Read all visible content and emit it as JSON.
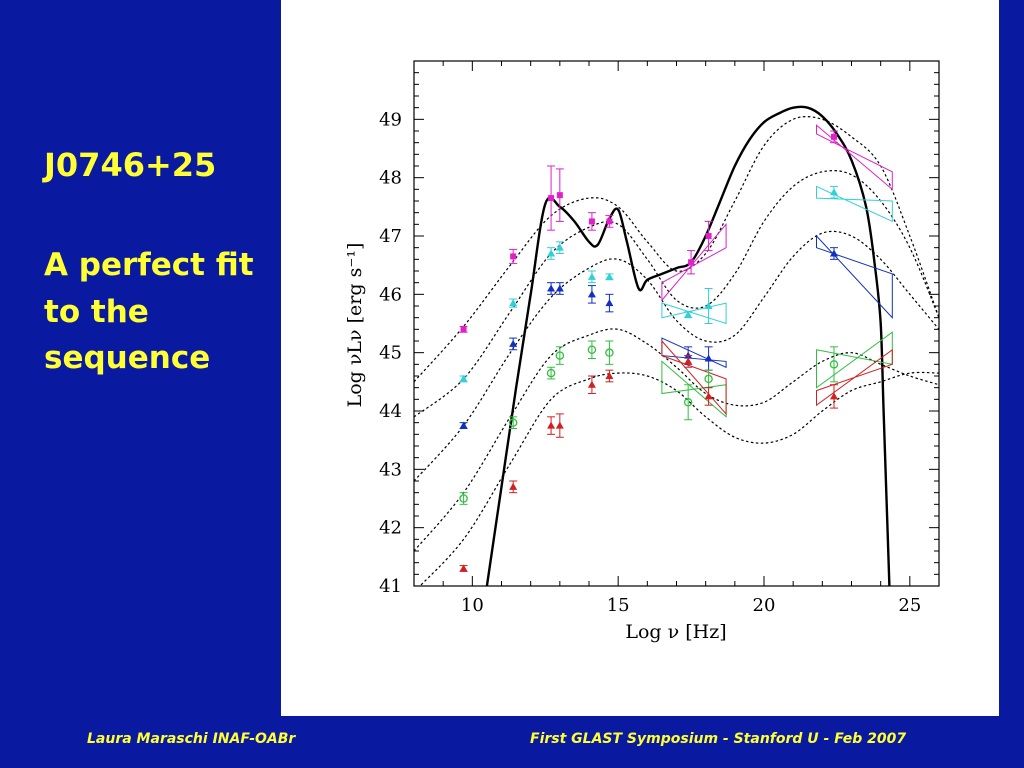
{
  "slide": {
    "title": "J0746+25",
    "subtitle": "A perfect fit to the sequence",
    "footer_left": "Laura Maraschi INAF-OABr",
    "footer_right": "First GLAST Symposium - Stanford U - Feb 2007"
  },
  "chart_data": {
    "type": "line",
    "title": "",
    "xlabel": "Log ν  [Hz]",
    "ylabel": "Log νLν [erg s⁻¹]",
    "xlim": [
      8,
      26
    ],
    "ylim": [
      41,
      50
    ],
    "xticks": [
      10,
      15,
      20,
      25
    ],
    "yticks": [
      41,
      42,
      43,
      44,
      45,
      46,
      47,
      48,
      49
    ],
    "grid": false,
    "legend": "none",
    "colors": {
      "magenta": "#e020c8",
      "cyan": "#30d0d8",
      "blue": "#1030c0",
      "green": "#30c040",
      "red": "#d02020",
      "model": "#000000"
    },
    "series": [
      {
        "style": "dotted",
        "color": "#000000",
        "x": [
          8.0,
          9.7,
          11.3,
          12.7,
          14.0,
          15.0,
          16.0,
          17.0,
          18.0,
          19.0,
          20.0,
          21.0,
          22.0,
          23.0,
          24.0,
          25.0,
          26.0
        ],
        "values": [
          44.5,
          45.45,
          46.5,
          47.35,
          47.65,
          47.5,
          46.9,
          46.4,
          46.7,
          47.6,
          48.55,
          49.0,
          49.0,
          48.7,
          48.2,
          47.0,
          45.6
        ]
      },
      {
        "style": "dotted",
        "color": "#000000",
        "x": [
          8.0,
          9.7,
          11.3,
          12.7,
          14.0,
          15.0,
          16.0,
          17.0,
          18.0,
          19.0,
          20.0,
          21.0,
          22.0,
          23.0,
          24.0,
          25.0,
          26.0
        ],
        "values": [
          43.9,
          44.55,
          45.7,
          46.7,
          47.15,
          47.2,
          46.6,
          45.9,
          45.8,
          46.35,
          47.25,
          47.85,
          48.1,
          48.05,
          47.6,
          46.8,
          45.6
        ]
      },
      {
        "style": "dotted",
        "color": "#000000",
        "x": [
          8.0,
          9.7,
          11.3,
          12.7,
          14.0,
          15.0,
          16.0,
          17.0,
          18.0,
          19.0,
          20.0,
          21.0,
          22.0,
          23.0,
          24.0,
          25.0,
          26.0
        ],
        "values": [
          42.8,
          43.75,
          45.0,
          45.95,
          46.45,
          46.6,
          46.25,
          45.55,
          45.2,
          45.3,
          45.95,
          46.65,
          47.05,
          47.0,
          46.6,
          46.0,
          45.4
        ]
      },
      {
        "style": "dotted",
        "color": "#000000",
        "x": [
          8.0,
          9.7,
          11.3,
          12.7,
          14.0,
          15.0,
          16.0,
          17.0,
          18.0,
          19.0,
          20.0,
          21.0,
          22.0,
          23.0,
          24.0,
          25.0,
          26.0
        ],
        "values": [
          41.6,
          42.6,
          43.9,
          44.95,
          45.3,
          45.4,
          45.15,
          44.75,
          44.3,
          44.1,
          44.15,
          44.5,
          44.85,
          45.0,
          44.8,
          44.6,
          44.45
        ]
      },
      {
        "style": "dotted",
        "color": "#000000",
        "x": [
          8.0,
          9.7,
          11.3,
          12.7,
          14.0,
          15.0,
          16.0,
          17.0,
          18.0,
          19.0,
          20.0,
          21.0,
          22.0,
          23.0,
          24.0,
          25.0,
          26.0
        ],
        "values": [
          40.9,
          41.8,
          43.1,
          44.2,
          44.55,
          44.65,
          44.6,
          44.35,
          43.9,
          43.55,
          43.45,
          43.6,
          44.0,
          44.35,
          44.5,
          44.65,
          44.65
        ]
      },
      {
        "name": "J0746+25",
        "style": "solid",
        "color": "#000000",
        "x": [
          10.5,
          11.0,
          11.5,
          12.0,
          12.5,
          13.0,
          13.5,
          14.0,
          14.3,
          14.7,
          15.0,
          15.3,
          15.7,
          16.0,
          16.5,
          17.0,
          17.5,
          18.0,
          18.5,
          19.0,
          19.5,
          20.0,
          20.5,
          21.0,
          21.5,
          22.0,
          22.5,
          23.0,
          23.5,
          23.8,
          24.0,
          24.1,
          24.2,
          24.3
        ],
        "values": [
          41.0,
          42.7,
          44.4,
          46.0,
          47.55,
          47.5,
          47.25,
          46.9,
          46.85,
          47.3,
          47.45,
          46.9,
          46.1,
          46.25,
          46.35,
          46.45,
          46.55,
          47.0,
          47.6,
          48.2,
          48.65,
          48.95,
          49.1,
          49.2,
          49.2,
          49.05,
          48.75,
          48.3,
          47.5,
          46.5,
          45.5,
          44.0,
          42.5,
          41.0
        ]
      }
    ],
    "points": [
      {
        "color": "#e020c8",
        "marker": "square",
        "x": [
          9.7,
          11.4,
          12.7,
          13.0,
          14.1,
          14.7,
          17.5,
          18.1,
          22.4
        ],
        "y": [
          45.4,
          46.65,
          47.65,
          47.7,
          47.25,
          47.25,
          46.55,
          47.0,
          48.7
        ],
        "err": [
          0.05,
          0.12,
          0.55,
          0.45,
          0.15,
          0.1,
          0.2,
          0.25,
          0.1
        ]
      },
      {
        "color": "#30d0d8",
        "marker": "triangle",
        "x": [
          9.7,
          11.4,
          12.7,
          13.0,
          14.1,
          14.7,
          17.4,
          18.1,
          22.4
        ],
        "y": [
          44.55,
          45.85,
          46.7,
          46.8,
          46.3,
          46.3,
          45.65,
          45.8,
          47.75
        ],
        "err": [
          0.05,
          0.07,
          0.1,
          0.1,
          0.1,
          0.05,
          0.05,
          0.3,
          0.1
        ]
      },
      {
        "color": "#1030c0",
        "marker": "triangle",
        "x": [
          9.7,
          11.4,
          12.7,
          13.0,
          14.1,
          14.7,
          17.4,
          18.1,
          22.4
        ],
        "y": [
          43.75,
          45.15,
          46.1,
          46.1,
          46.0,
          45.85,
          44.95,
          44.9,
          46.7
        ],
        "err": [
          0.05,
          0.1,
          0.1,
          0.1,
          0.15,
          0.15,
          0.15,
          0.2,
          0.1
        ]
      },
      {
        "color": "#30c040",
        "marker": "circle",
        "x": [
          9.7,
          11.4,
          12.7,
          13.0,
          14.1,
          14.7,
          17.4,
          18.1,
          22.4
        ],
        "y": [
          42.5,
          43.8,
          44.65,
          44.95,
          45.05,
          45.0,
          44.15,
          44.55,
          44.8
        ],
        "err": [
          0.1,
          0.1,
          0.1,
          0.15,
          0.15,
          0.2,
          0.3,
          0.15,
          0.3
        ]
      },
      {
        "color": "#d02020",
        "marker": "triangle",
        "x": [
          9.7,
          11.4,
          12.7,
          13.0,
          14.1,
          14.7,
          17.4,
          18.1,
          22.4
        ],
        "y": [
          41.3,
          42.7,
          43.75,
          43.75,
          44.45,
          44.6,
          44.85,
          44.25,
          44.25
        ],
        "err": [
          0.05,
          0.1,
          0.15,
          0.2,
          0.15,
          0.1,
          0.1,
          0.15,
          0.2
        ]
      }
    ],
    "bowties": [
      {
        "color": "#e020c8",
        "band": "x-ray",
        "x": [
          16.5,
          18.7
        ],
        "upper": [
          46.2,
          47.2
        ],
        "lower": [
          45.9,
          46.8
        ]
      },
      {
        "color": "#e020c8",
        "band": "gamma",
        "x": [
          21.8,
          24.4
        ],
        "upper": [
          48.9,
          48.1
        ],
        "lower": [
          48.75,
          47.8
        ]
      },
      {
        "color": "#30d0d8",
        "band": "x-ray",
        "x": [
          16.5,
          18.7
        ],
        "upper": [
          45.85,
          45.85
        ],
        "lower": [
          45.6,
          45.5
        ]
      },
      {
        "color": "#30d0d8",
        "band": "gamma",
        "x": [
          21.8,
          24.4
        ],
        "upper": [
          47.85,
          47.6
        ],
        "lower": [
          47.65,
          47.25
        ]
      },
      {
        "color": "#1030c0",
        "band": "x-ray",
        "x": [
          16.5,
          18.7
        ],
        "upper": [
          45.25,
          44.85
        ],
        "lower": [
          44.95,
          44.75
        ]
      },
      {
        "color": "#1030c0",
        "band": "gamma",
        "x": [
          21.8,
          24.4
        ],
        "upper": [
          47.0,
          46.35
        ],
        "lower": [
          46.8,
          45.6
        ]
      },
      {
        "color": "#30c040",
        "band": "x-ray",
        "x": [
          16.5,
          18.7
        ],
        "upper": [
          44.85,
          44.45
        ],
        "lower": [
          44.3,
          43.9
        ]
      },
      {
        "color": "#30c040",
        "band": "gamma",
        "x": [
          21.8,
          24.4
        ],
        "upper": [
          45.05,
          45.35
        ],
        "lower": [
          44.4,
          44.8
        ]
      },
      {
        "color": "#d02020",
        "band": "x-ray",
        "x": [
          16.5,
          18.7
        ],
        "upper": [
          45.2,
          44.55
        ],
        "lower": [
          44.95,
          43.95
        ]
      },
      {
        "color": "#d02020",
        "band": "gamma",
        "x": [
          21.8,
          24.4
        ],
        "upper": [
          44.35,
          45.05
        ],
        "lower": [
          44.1,
          44.8
        ]
      }
    ]
  }
}
